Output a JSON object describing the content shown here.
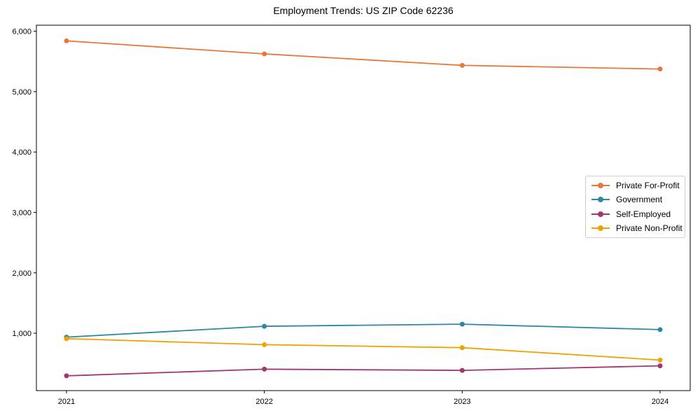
{
  "page": {
    "background": "#ffffff"
  },
  "chart_data": {
    "type": "line",
    "title": "Employment Trends: US ZIP Code 62236",
    "xlabel": "",
    "ylabel": "",
    "x": [
      2021,
      2022,
      2023,
      2024
    ],
    "x_tick_labels": [
      "2021",
      "2022",
      "2023",
      "2024"
    ],
    "y_ticks": [
      1000,
      2000,
      3000,
      4000,
      5000,
      6000
    ],
    "y_tick_labels": [
      "1,000",
      "2,000",
      "3,000",
      "4,000",
      "5,000",
      "6,000"
    ],
    "ylim": [
      50,
      6100
    ],
    "grid": false,
    "frame": "box",
    "legend_position": "center-right",
    "series": [
      {
        "name": "Private For-Profit",
        "color": "#E8773C",
        "values": [
          5840,
          5625,
          5435,
          5375
        ]
      },
      {
        "name": "Government",
        "color": "#2E87A6",
        "values": [
          935,
          1115,
          1150,
          1060
        ]
      },
      {
        "name": "Self-Employed",
        "color": "#A23670",
        "values": [
          295,
          405,
          385,
          460
        ]
      },
      {
        "name": "Private Non-Profit",
        "color": "#F0A202",
        "values": [
          910,
          810,
          760,
          555
        ]
      }
    ]
  }
}
